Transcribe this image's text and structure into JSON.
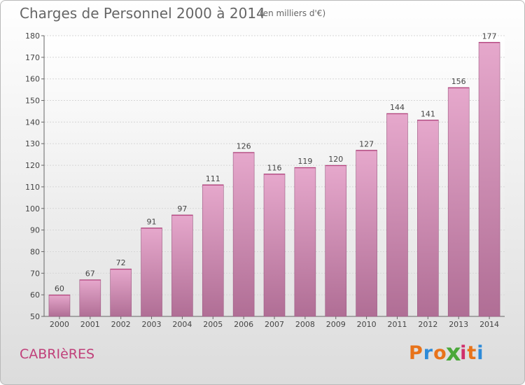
{
  "header": {
    "title": "Charges de Personnel 2000 à 2014",
    "unit": "(en milliers d'€)"
  },
  "footer": {
    "commune": "CABRIèRES",
    "logo_text": "Proxiti"
  },
  "colors": {
    "bar_top": "#e6a8cc",
    "bar_bottom": "#b06e95",
    "commune_text": "#c0407a",
    "logo_letters": [
      "#e8731a",
      "#2e8bd8",
      "#e8731a",
      "#4aa83a",
      "#d02f6b",
      "#e8731a",
      "#2e8bd8"
    ]
  },
  "chart_data": {
    "type": "bar",
    "title": "Charges de Personnel 2000 à 2014",
    "subtitle": "(en milliers d'€)",
    "xlabel": "",
    "ylabel": "",
    "categories": [
      "2000",
      "2001",
      "2002",
      "2003",
      "2004",
      "2005",
      "2006",
      "2007",
      "2008",
      "2009",
      "2010",
      "2011",
      "2012",
      "2013",
      "2014"
    ],
    "values": [
      60,
      67,
      72,
      91,
      97,
      111,
      126,
      116,
      119,
      120,
      127,
      144,
      141,
      156,
      177
    ],
    "ylim": [
      50,
      180
    ],
    "yticks": [
      50,
      60,
      70,
      80,
      90,
      100,
      110,
      120,
      130,
      140,
      150,
      160,
      170,
      180
    ],
    "grid": true,
    "legend": "none"
  }
}
